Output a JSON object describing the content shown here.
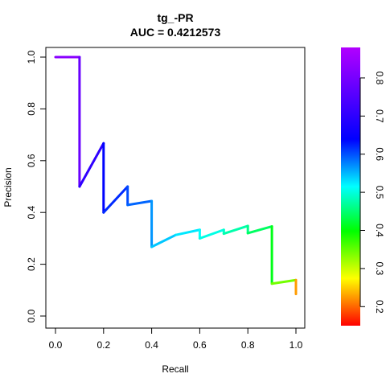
{
  "chart_data": {
    "type": "line",
    "title": "tg_-PR",
    "subtitle": "AUC = 0.4212573",
    "xlabel": "Recall",
    "ylabel": "Precision",
    "xlim": [
      0,
      1
    ],
    "ylim": [
      0,
      1
    ],
    "xticks": [
      0.0,
      0.2,
      0.4,
      0.6,
      0.8,
      1.0
    ],
    "yticks": [
      0.0,
      0.2,
      0.4,
      0.6,
      0.8,
      1.0
    ],
    "xtick_labels": [
      "0.0",
      "0.2",
      "0.4",
      "0.6",
      "0.8",
      "1.0"
    ],
    "ytick_labels": [
      "0.0",
      "0.2",
      "0.4",
      "0.6",
      "0.8",
      "1.0"
    ],
    "grid": false,
    "legend": "colorbar-right",
    "colormap": "rainbow (red = low, violet = high)",
    "colorbar": {
      "range": [
        0.15,
        0.88
      ],
      "ticks": [
        0.2,
        0.3,
        0.4,
        0.5,
        0.6,
        0.7,
        0.8
      ],
      "tick_labels": [
        "0.2",
        "0.3",
        "0.4",
        "0.5",
        "0.6",
        "0.7",
        "0.8"
      ]
    },
    "series": [
      {
        "points": [
          {
            "x": 0.0,
            "y": 1.0,
            "score": 0.86
          },
          {
            "x": 0.1,
            "y": 1.0,
            "score": 0.85
          },
          {
            "x": 0.1,
            "y": 0.5,
            "score": 0.82
          },
          {
            "x": 0.2,
            "y": 0.667,
            "score": 0.78
          },
          {
            "x": 0.2,
            "y": 0.4,
            "score": 0.76
          },
          {
            "x": 0.3,
            "y": 0.5,
            "score": 0.73
          },
          {
            "x": 0.3,
            "y": 0.429,
            "score": 0.72
          },
          {
            "x": 0.4,
            "y": 0.444,
            "score": 0.7
          },
          {
            "x": 0.4,
            "y": 0.267,
            "score": 0.66
          },
          {
            "x": 0.5,
            "y": 0.313,
            "score": 0.64
          },
          {
            "x": 0.6,
            "y": 0.333,
            "score": 0.62
          },
          {
            "x": 0.6,
            "y": 0.3,
            "score": 0.61
          },
          {
            "x": 0.7,
            "y": 0.333,
            "score": 0.59
          },
          {
            "x": 0.7,
            "y": 0.318,
            "score": 0.58
          },
          {
            "x": 0.8,
            "y": 0.348,
            "score": 0.55
          },
          {
            "x": 0.8,
            "y": 0.32,
            "score": 0.54
          },
          {
            "x": 0.9,
            "y": 0.346,
            "score": 0.5
          },
          {
            "x": 0.9,
            "y": 0.125,
            "score": 0.45
          },
          {
            "x": 1.0,
            "y": 0.139,
            "score": 0.33
          },
          {
            "x": 1.0,
            "y": 0.085,
            "score": 0.16
          }
        ]
      }
    ]
  }
}
